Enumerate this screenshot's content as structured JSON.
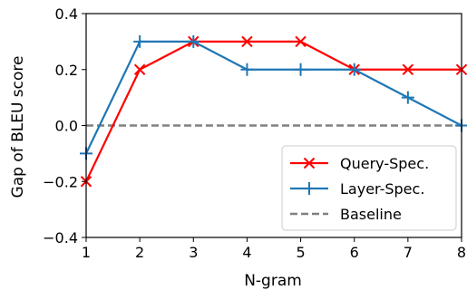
{
  "chart_data": {
    "type": "line",
    "xlabel": "N-gram",
    "ylabel": "Gap of BLEU score",
    "x": [
      1,
      2,
      3,
      4,
      5,
      6,
      7,
      8
    ],
    "xlim": [
      1,
      8
    ],
    "ylim": [
      -0.4,
      0.4
    ],
    "xticks": [
      "1",
      "2",
      "3",
      "4",
      "5",
      "6",
      "7",
      "8"
    ],
    "yticks": [
      "−0.4",
      "−0.2",
      "0.0",
      "0.2",
      "0.4"
    ],
    "ytick_values": [
      -0.4,
      -0.2,
      0.0,
      0.2,
      0.4
    ],
    "series": [
      {
        "name": "Query-Spec.",
        "values": [
          -0.2,
          0.2,
          0.3,
          0.3,
          0.3,
          0.2,
          0.2,
          0.2
        ],
        "color": "#ff0000",
        "marker": "x"
      },
      {
        "name": "Layer-Spec.",
        "values": [
          -0.1,
          0.3,
          0.3,
          0.2,
          0.2,
          0.2,
          0.1,
          0.0
        ],
        "color": "#1f77b4",
        "marker": "+"
      }
    ],
    "baseline": {
      "name": "Baseline",
      "value": 0.0,
      "color": "#808080",
      "style": "dashed"
    },
    "legend_position": "lower-right",
    "grid": false
  }
}
